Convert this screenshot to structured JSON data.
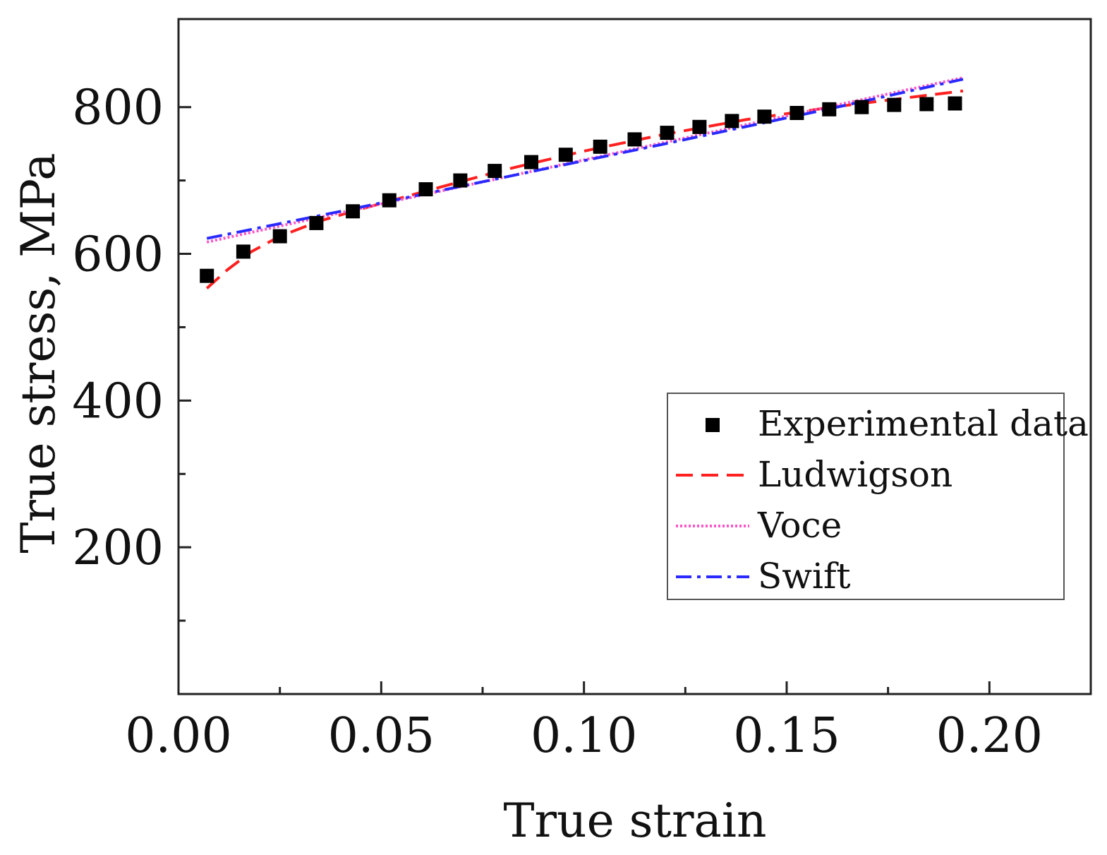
{
  "chart_data": {
    "type": "scatter",
    "title": "",
    "xlabel": "True strain",
    "ylabel": "True stress, MPa",
    "xlim": [
      0.0,
      0.225
    ],
    "ylim": [
      0,
      920
    ],
    "x_ticks": [
      0.0,
      0.05,
      0.1,
      0.15,
      0.2
    ],
    "x_tick_labels": [
      "0.00",
      "0.05",
      "0.10",
      "0.15",
      "0.20"
    ],
    "x_minor_ticks": [
      0.025,
      0.075,
      0.125,
      0.175
    ],
    "y_ticks": [
      200,
      400,
      600,
      800
    ],
    "y_tick_labels": [
      "200",
      "400",
      "600",
      "800"
    ],
    "y_minor_ticks": [
      100,
      300,
      500,
      700
    ],
    "grid": false,
    "legend_position": "lower-right",
    "series": [
      {
        "name": "Experimental data",
        "kind": "markers",
        "color": "#000000",
        "x": [
          0.007,
          0.016,
          0.025,
          0.034,
          0.043,
          0.052,
          0.061,
          0.0695,
          0.078,
          0.087,
          0.0955,
          0.104,
          0.1125,
          0.1205,
          0.1285,
          0.1365,
          0.1445,
          0.1525,
          0.1605,
          0.1685,
          0.1765,
          0.1845,
          0.1915
        ],
        "y": [
          570,
          603,
          624,
          642,
          658,
          673,
          688,
          700,
          713,
          725,
          735,
          746,
          756,
          765,
          773,
          781,
          787,
          792,
          797,
          800,
          803,
          804,
          805
        ]
      },
      {
        "name": "Ludwigson",
        "kind": "dashed",
        "color": "#ff2020",
        "x": [
          0.007,
          0.012,
          0.018,
          0.025,
          0.035,
          0.045,
          0.06,
          0.08,
          0.1,
          0.12,
          0.14,
          0.16,
          0.18,
          0.1935
        ],
        "y": [
          553,
          578,
          603,
          624,
          645,
          661,
          684,
          714,
          740,
          763,
          783,
          799,
          813,
          822
        ]
      },
      {
        "name": "Voce",
        "kind": "dotted",
        "color": "#ff55c8",
        "x": [
          0.007,
          0.04,
          0.08,
          0.12,
          0.16,
          0.1935
        ],
        "y": [
          616,
          656,
          704,
          752,
          800,
          840
        ]
      },
      {
        "name": "Swift",
        "kind": "dashdot",
        "color": "#2a2aff",
        "x": [
          0.007,
          0.04,
          0.08,
          0.12,
          0.16,
          0.1935
        ],
        "y": [
          621,
          658,
          704,
          750,
          797,
          838
        ]
      }
    ]
  }
}
